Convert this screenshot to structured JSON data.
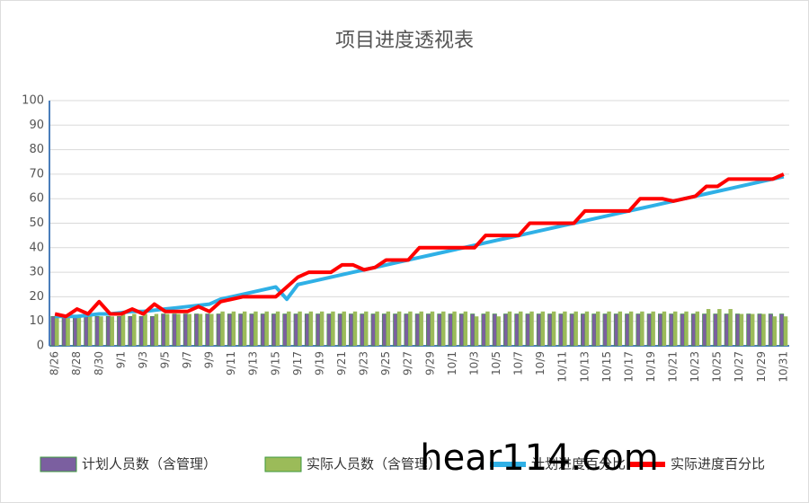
{
  "chart_data": {
    "type": "bar_line",
    "title": "项目进度透视表",
    "categories": [
      "8/26",
      null,
      "8/28",
      null,
      "8/30",
      null,
      "9/1",
      null,
      "9/3",
      null,
      "9/5",
      null,
      "9/7",
      null,
      "9/9",
      null,
      "9/11",
      null,
      "9/13",
      null,
      "9/15",
      null,
      "9/17",
      null,
      "9/19",
      null,
      "9/21",
      null,
      "9/23",
      null,
      "9/25",
      null,
      "9/27",
      null,
      "9/29",
      null,
      "10/1",
      null,
      "10/3",
      null,
      "10/5",
      null,
      "10/7",
      null,
      "10/9",
      null,
      "10/11",
      null,
      "10/13",
      null,
      "10/15",
      null,
      "10/17",
      null,
      "10/19",
      null,
      "10/21",
      null,
      "10/23",
      null,
      "10/25",
      null,
      "10/27",
      null,
      "10/29",
      null,
      "10/31"
    ],
    "series": [
      {
        "name": "计划人员数（含管理）",
        "kind": "bar",
        "color": "#7b5fa0",
        "values": [
          12,
          12,
          12,
          12,
          12,
          12,
          12,
          12,
          12,
          12,
          13,
          13,
          13,
          13,
          13,
          13,
          13,
          13,
          13,
          13,
          13,
          13,
          13,
          13,
          13,
          13,
          13,
          13,
          13,
          13,
          13,
          13,
          13,
          13,
          13,
          13,
          13,
          13,
          13,
          13,
          13,
          13,
          13,
          13,
          13,
          13,
          13,
          13,
          13,
          13,
          13,
          13,
          13,
          13,
          13,
          13,
          13,
          13,
          13,
          13,
          13,
          13,
          13,
          13,
          13,
          13,
          13
        ]
      },
      {
        "name": "实际人员数（含管理）",
        "kind": "bar",
        "color": "#9bbb59",
        "values": [
          12,
          12,
          12,
          12,
          12,
          12,
          13,
          13,
          13,
          13,
          13,
          13,
          13,
          13,
          13,
          14,
          14,
          14,
          14,
          14,
          14,
          14,
          14,
          14,
          14,
          14,
          14,
          14,
          14,
          14,
          14,
          14,
          14,
          14,
          14,
          14,
          14,
          14,
          12,
          14,
          12,
          14,
          14,
          14,
          14,
          14,
          14,
          14,
          14,
          14,
          14,
          14,
          14,
          14,
          14,
          14,
          14,
          14,
          14,
          15,
          15,
          15,
          13,
          13,
          13,
          12,
          12
        ]
      },
      {
        "name": "计划进度百分比",
        "kind": "line",
        "color": "#2fb0e6",
        "values": [
          12,
          12,
          12,
          12.5,
          13,
          13,
          13.5,
          14,
          14,
          14.5,
          15,
          15.5,
          16,
          16.5,
          17,
          19,
          20,
          21,
          22,
          23,
          24,
          19,
          25,
          26,
          27,
          28,
          29,
          30,
          31,
          32,
          33,
          34,
          35,
          36,
          37,
          38,
          39,
          40,
          41,
          42,
          43,
          44,
          45,
          46,
          47,
          48,
          49,
          50,
          51,
          52,
          53,
          54,
          55,
          56,
          57,
          58,
          59,
          60,
          61,
          62,
          63,
          64,
          65,
          66,
          67,
          68,
          69
        ]
      },
      {
        "name": "实际进度百分比",
        "kind": "line",
        "color": "#ff0000",
        "values": [
          13,
          12,
          15,
          13,
          18,
          13,
          13,
          15,
          13,
          17,
          14,
          14,
          14,
          16,
          14,
          18,
          19,
          20,
          20,
          20,
          20,
          24,
          28,
          30,
          30,
          30,
          33,
          33,
          31,
          32,
          35,
          35,
          35,
          40,
          40,
          40,
          40,
          40,
          40,
          45,
          45,
          45,
          45,
          50,
          50,
          50,
          50,
          50,
          55,
          55,
          55,
          55,
          55,
          60,
          60,
          60,
          59,
          60,
          61,
          65,
          65,
          68,
          68,
          68,
          68,
          68,
          70
        ]
      }
    ],
    "ylim": [
      0,
      100
    ],
    "yticks": [
      0,
      10,
      20,
      30,
      40,
      50,
      60,
      70,
      80,
      90,
      100
    ],
    "grid": true,
    "watermark": "hear114.com"
  }
}
